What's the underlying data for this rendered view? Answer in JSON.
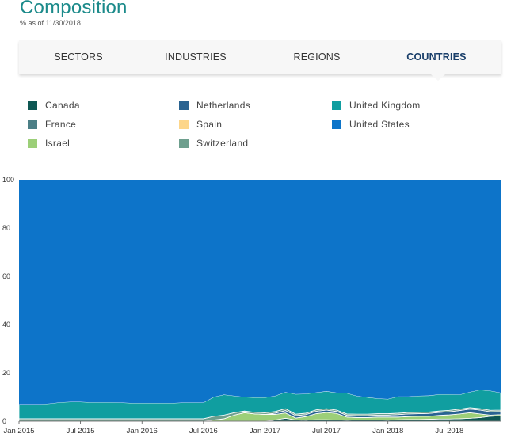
{
  "header": {
    "title": "Composition",
    "as_of": "% as of 11/30/2018"
  },
  "tabs": [
    {
      "label": "SECTORS",
      "active": false
    },
    {
      "label": "INDUSTRIES",
      "active": false
    },
    {
      "label": "REGIONS",
      "active": false
    },
    {
      "label": "COUNTRIES",
      "active": true
    }
  ],
  "colors": {
    "accent": "#1b8a8a",
    "active_tab": "#1a3f6a"
  },
  "chart_data": {
    "type": "area",
    "stacked": true,
    "ylim": [
      0,
      100
    ],
    "yticks": [
      0,
      20,
      40,
      60,
      80,
      100
    ],
    "xticks": [
      {
        "x": 0,
        "label": "Jan 2015"
      },
      {
        "x": 6,
        "label": "Jul 2015"
      },
      {
        "x": 12,
        "label": "Jan 2016"
      },
      {
        "x": 18,
        "label": "Jul 2016"
      },
      {
        "x": 24,
        "label": "Jan 2017"
      },
      {
        "x": 30,
        "label": "Jul 2017"
      },
      {
        "x": 36,
        "label": "Jan 2018"
      },
      {
        "x": 42,
        "label": "Jul 2018"
      }
    ],
    "x": [
      0,
      1,
      2,
      3,
      4,
      5,
      6,
      7,
      8,
      9,
      10,
      11,
      12,
      13,
      14,
      15,
      16,
      17,
      18,
      19,
      20,
      21,
      22,
      23,
      24,
      25,
      26,
      27,
      28,
      29,
      30,
      31,
      32,
      33,
      34,
      35,
      36,
      37,
      38,
      39,
      40,
      41,
      42,
      43,
      44,
      45,
      46,
      47
    ],
    "legend_placement": "top",
    "series": [
      {
        "name": "Canada",
        "color": "#0e5753",
        "values": [
          0,
          0,
          0,
          0,
          0,
          0,
          0,
          0,
          0,
          0,
          0,
          0,
          0,
          0,
          0,
          0,
          0,
          0,
          0,
          0,
          0,
          0,
          0,
          0,
          0,
          0.5,
          1.2,
          0.5,
          0.4,
          0.6,
          0.6,
          0.5,
          0.4,
          0.5,
          0.5,
          0.5,
          0.4,
          0.6,
          0.7,
          0.7,
          0.8,
          0.9,
          0.9,
          1.0,
          1.2,
          1.5,
          2.0,
          2.2
        ]
      },
      {
        "name": "France",
        "color": "#4c7f86",
        "values": [
          0,
          0,
          0,
          0,
          0,
          0,
          0,
          0,
          0,
          0,
          0,
          0,
          0,
          0,
          0,
          0,
          0,
          0,
          0,
          0,
          0,
          0,
          0,
          0,
          0,
          0,
          0,
          0,
          0,
          0,
          0,
          0,
          0,
          0,
          0,
          0,
          0,
          0,
          0,
          0,
          0,
          0,
          0,
          0,
          0,
          0,
          0,
          0
        ]
      },
      {
        "name": "Israel",
        "color": "#9ccf78",
        "values": [
          0,
          0,
          0,
          0,
          0,
          0,
          0,
          0,
          0,
          0,
          0,
          0,
          0,
          0,
          0,
          0,
          0,
          0,
          0,
          0.5,
          1.0,
          2.5,
          3.5,
          3.0,
          2.8,
          2.3,
          2.2,
          0.8,
          1.5,
          2.5,
          3.0,
          2.7,
          1.3,
          1.0,
          1.0,
          1.2,
          1.3,
          1.1,
          1.2,
          1.3,
          1.2,
          1.5,
          1.7,
          2.0,
          2.3,
          1.5,
          0.5,
          0.5
        ]
      },
      {
        "name": "Netherlands",
        "color": "#2a6391",
        "values": [
          0,
          0,
          0,
          0,
          0,
          0,
          0,
          0,
          0,
          0,
          0,
          0,
          0,
          0,
          0,
          0,
          0,
          0,
          0,
          0,
          0,
          0,
          0,
          0,
          0,
          0.5,
          1.0,
          1.0,
          0.8,
          1.0,
          1.0,
          0.8,
          0.7,
          0.8,
          0.8,
          0.8,
          0.8,
          1.0,
          1.1,
          1.1,
          1.2,
          1.2,
          1.3,
          1.4,
          1.5,
          1.6,
          1.4,
          1.3
        ]
      },
      {
        "name": "Spain",
        "color": "#fdd68a",
        "values": [
          0,
          0,
          0,
          0,
          0,
          0,
          0,
          0,
          0,
          0,
          0,
          0,
          0,
          0,
          0,
          0,
          0,
          0,
          0,
          0,
          0,
          0,
          0,
          0,
          0,
          0,
          0,
          0,
          0,
          0,
          0,
          0,
          0,
          0,
          0,
          0,
          0,
          0,
          0,
          0,
          0,
          0,
          0,
          0,
          0,
          0,
          0,
          0
        ]
      },
      {
        "name": "Switzerland",
        "color": "#6e9f8e",
        "values": [
          1.0,
          1.0,
          1.0,
          1.0,
          1.0,
          1.0,
          1.0,
          1.0,
          1.0,
          1.0,
          1.0,
          1.0,
          1.0,
          1.0,
          1.0,
          1.0,
          1.0,
          1.0,
          1.0,
          1.5,
          1.5,
          1.0,
          0.7,
          0.7,
          0.7,
          0.7,
          0.8,
          0.6,
          0.6,
          0.6,
          0.6,
          0.6,
          0.6,
          0.6,
          0.6,
          0.6,
          0.6,
          0.6,
          0.6,
          0.6,
          0.6,
          0.6,
          0.6,
          0.6,
          0.6,
          0.6,
          0.6,
          0.6
        ]
      },
      {
        "name": "United Kingdom",
        "color": "#109ea0",
        "values": [
          6.0,
          6.0,
          6.0,
          6.3,
          6.8,
          7.0,
          7.0,
          6.8,
          6.8,
          6.8,
          6.7,
          6.5,
          6.5,
          6.5,
          6.5,
          6.5,
          6.7,
          6.7,
          6.7,
          8.0,
          8.5,
          7.0,
          5.8,
          6.1,
          6.3,
          6.5,
          6.8,
          8.3,
          8.0,
          7.2,
          7.2,
          7.2,
          8.6,
          7.5,
          7.0,
          6.3,
          6.1,
          6.9,
          6.6,
          6.8,
          6.8,
          6.9,
          6.6,
          6.0,
          6.5,
          7.8,
          8.1,
          7.2
        ]
      },
      {
        "name": "United States",
        "color": "#0d74c9",
        "remainder_to": 100
      }
    ]
  }
}
